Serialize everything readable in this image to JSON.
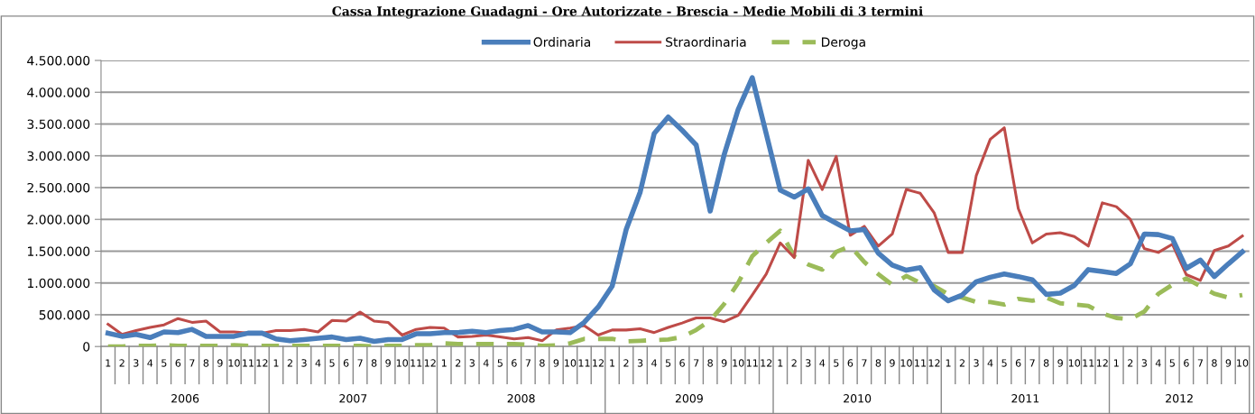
{
  "chart_data": {
    "type": "line",
    "title": "Cassa Integrazione Guadagni - Ore Autorizzate - Brescia - Medie Mobili di 3 termini",
    "categories": [
      "1",
      "2",
      "3",
      "4",
      "5",
      "6",
      "7",
      "8",
      "9",
      "10",
      "11",
      "12",
      "1",
      "2",
      "3",
      "4",
      "5",
      "6",
      "7",
      "8",
      "9",
      "10",
      "11",
      "12",
      "1",
      "2",
      "3",
      "4",
      "5",
      "6",
      "7",
      "8",
      "9",
      "10",
      "11",
      "12",
      "1",
      "2",
      "3",
      "4",
      "5",
      "6",
      "7",
      "8",
      "9",
      "10",
      "11",
      "12",
      "1",
      "2",
      "3",
      "4",
      "5",
      "6",
      "7",
      "8",
      "9",
      "10",
      "11",
      "12",
      "1",
      "2",
      "3",
      "4",
      "5",
      "6",
      "7",
      "8",
      "9",
      "10",
      "11",
      "12",
      "1",
      "2",
      "3",
      "4",
      "5",
      "6",
      "7",
      "8",
      "9",
      "10"
    ],
    "annotations": [
      "2006",
      "2007",
      "2008",
      "2009",
      "2010",
      "2011",
      "2012"
    ],
    "series": [
      {
        "name": "Ordinaria",
        "color": "#4a7ebb",
        "line_style": "solid",
        "values": [
          210000,
          160000,
          190000,
          140000,
          230000,
          220000,
          270000,
          160000,
          160000,
          160000,
          210000,
          210000,
          120000,
          90000,
          110000,
          130000,
          150000,
          110000,
          130000,
          80000,
          110000,
          110000,
          200000,
          200000,
          220000,
          220000,
          240000,
          220000,
          250000,
          270000,
          330000,
          230000,
          230000,
          220000,
          380000,
          620000,
          950000,
          1840000,
          2430000,
          3350000,
          3610000,
          3400000,
          3170000,
          2130000,
          3020000,
          3730000,
          4230000,
          3350000,
          2460000,
          2350000,
          2480000,
          2060000,
          1940000,
          1820000,
          1840000,
          1470000,
          1280000,
          1200000,
          1240000,
          890000,
          720000,
          810000,
          1020000,
          1090000,
          1140000,
          1100000,
          1050000,
          820000,
          840000,
          960000,
          1210000,
          1180000,
          1150000,
          1300000,
          1770000,
          1760000,
          1700000,
          1230000,
          1360000,
          1100000,
          1300000,
          1490000
        ]
      },
      {
        "name": "Straordinaria",
        "color": "#be4b48",
        "line_style": "solid",
        "values": [
          350000,
          190000,
          250000,
          300000,
          340000,
          440000,
          380000,
          400000,
          230000,
          230000,
          210000,
          210000,
          250000,
          250000,
          270000,
          230000,
          410000,
          400000,
          540000,
          400000,
          380000,
          180000,
          270000,
          300000,
          290000,
          150000,
          160000,
          180000,
          150000,
          120000,
          140000,
          90000,
          260000,
          290000,
          330000,
          180000,
          260000,
          260000,
          280000,
          220000,
          300000,
          370000,
          450000,
          450000,
          390000,
          490000,
          810000,
          1140000,
          1630000,
          1400000,
          2930000,
          2470000,
          2990000,
          1750000,
          1890000,
          1580000,
          1770000,
          2470000,
          2410000,
          2100000,
          1480000,
          1480000,
          2690000,
          3260000,
          3440000,
          2170000,
          1630000,
          1770000,
          1790000,
          1730000,
          1580000,
          2260000,
          2200000,
          2000000,
          1540000,
          1480000,
          1610000,
          1130000,
          1040000,
          1510000,
          1580000,
          1740000
        ]
      },
      {
        "name": "Deroga",
        "color": "#9bbb59",
        "line_style": "dashed",
        "values": [
          0,
          0,
          10000,
          10000,
          20000,
          10000,
          10000,
          10000,
          10000,
          20000,
          10000,
          10000,
          10000,
          10000,
          10000,
          10000,
          10000,
          10000,
          10000,
          0,
          10000,
          10000,
          20000,
          20000,
          50000,
          40000,
          40000,
          40000,
          40000,
          40000,
          30000,
          10000,
          20000,
          50000,
          120000,
          120000,
          120000,
          80000,
          90000,
          100000,
          110000,
          150000,
          260000,
          410000,
          670000,
          1000000,
          1420000,
          1630000,
          1820000,
          1420000,
          1290000,
          1210000,
          1490000,
          1580000,
          1330000,
          1140000,
          970000,
          1110000,
          1000000,
          950000,
          820000,
          770000,
          700000,
          700000,
          660000,
          750000,
          720000,
          770000,
          680000,
          660000,
          640000,
          520000,
          450000,
          430000,
          550000,
          830000,
          970000,
          1070000,
          950000,
          830000,
          770000,
          810000
        ]
      }
    ],
    "ylim": [
      0,
      4500000
    ],
    "yticks": [
      {
        "value": 0,
        "label": "0"
      },
      {
        "value": 500000,
        "label": "500.000"
      },
      {
        "value": 1000000,
        "label": "1.000.000"
      },
      {
        "value": 1500000,
        "label": "1.500.000"
      },
      {
        "value": 2000000,
        "label": "2.000.000"
      },
      {
        "value": 2500000,
        "label": "2.500.000"
      },
      {
        "value": 3000000,
        "label": "3.000.000"
      },
      {
        "value": 3500000,
        "label": "3.500.000"
      },
      {
        "value": 4000000,
        "label": "4.000.000"
      },
      {
        "value": 4500000,
        "label": "4.500.000"
      }
    ],
    "grid": "y",
    "legend": "top",
    "marker": "none"
  }
}
